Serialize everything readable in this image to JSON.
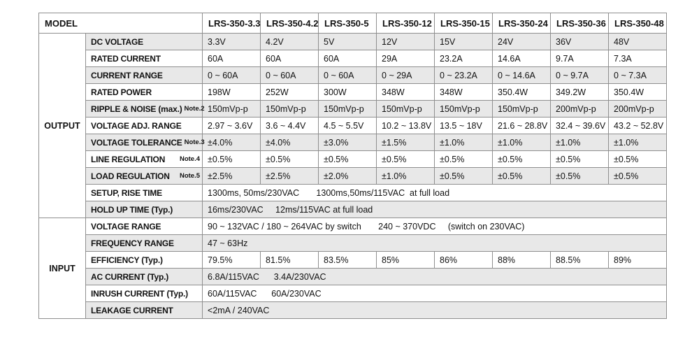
{
  "table": {
    "colors": {
      "stripe": "#e8e8e8",
      "border": "#8f8f8f"
    },
    "header": {
      "model_label": "MODEL",
      "models": [
        "LRS-350-3.3",
        "LRS-350-4.2",
        "LRS-350-5",
        "LRS-350-12",
        "LRS-350-15",
        "LRS-350-24",
        "LRS-350-36",
        "LRS-350-48"
      ]
    },
    "sections": [
      {
        "name": "OUTPUT",
        "rows": [
          {
            "label": "DC VOLTAGE",
            "values": [
              "3.3V",
              "4.2V",
              "5V",
              "12V",
              "15V",
              "24V",
              "36V",
              "48V"
            ]
          },
          {
            "label": "RATED CURRENT",
            "values": [
              "60A",
              "60A",
              "60A",
              "29A",
              "23.2A",
              "14.6A",
              "9.7A",
              "7.3A"
            ]
          },
          {
            "label": "CURRENT RANGE",
            "values": [
              "0 ~ 60A",
              "0 ~ 60A",
              "0 ~ 60A",
              "0 ~ 29A",
              "0 ~ 23.2A",
              "0 ~ 14.6A",
              "0 ~ 9.7A",
              "0 ~ 7.3A"
            ]
          },
          {
            "label": "RATED POWER",
            "values": [
              "198W",
              "252W",
              "300W",
              "348W",
              "348W",
              "350.4W",
              "349.2W",
              "350.4W"
            ]
          },
          {
            "label": "RIPPLE & NOISE (max.)",
            "note": "Note.2",
            "values": [
              "150mVp-p",
              "150mVp-p",
              "150mVp-p",
              "150mVp-p",
              "150mVp-p",
              "150mVp-p",
              "200mVp-p",
              "200mVp-p"
            ]
          },
          {
            "label": "VOLTAGE ADJ. RANGE",
            "values": [
              "2.97 ~ 3.6V",
              "3.6 ~ 4.4V",
              "4.5 ~ 5.5V",
              "10.2 ~ 13.8V",
              "13.5 ~ 18V",
              "21.6 ~ 28.8V",
              "32.4 ~ 39.6V",
              "43.2 ~ 52.8V"
            ]
          },
          {
            "label": "VOLTAGE TOLERANCE",
            "note": "Note.3",
            "values": [
              "±4.0%",
              "±4.0%",
              "±3.0%",
              "±1.5%",
              "±1.0%",
              "±1.0%",
              "±1.0%",
              "±1.0%"
            ]
          },
          {
            "label": "LINE REGULATION",
            "note": "Note.4",
            "values": [
              "±0.5%",
              "±0.5%",
              "±0.5%",
              "±0.5%",
              "±0.5%",
              "±0.5%",
              "±0.5%",
              "±0.5%"
            ]
          },
          {
            "label": "LOAD REGULATION",
            "note": "Note.5",
            "values": [
              "±2.5%",
              "±2.5%",
              "±2.0%",
              "±1.0%",
              "±0.5%",
              "±0.5%",
              "±0.5%",
              "±0.5%"
            ]
          },
          {
            "label": "SETUP, RISE TIME",
            "span": "1300ms, 50ms/230VAC       1300ms,50ms/115VAC  at full load"
          },
          {
            "label": "HOLD UP TIME (Typ.)",
            "span": "16ms/230VAC     12ms/115VAC at full load"
          }
        ]
      },
      {
        "name": "INPUT",
        "rows": [
          {
            "label": "VOLTAGE RANGE",
            "span": "90 ~ 132VAC / 180 ~ 264VAC by switch       240 ~ 370VDC     (switch on 230VAC)"
          },
          {
            "label": "FREQUENCY RANGE",
            "span": "47 ~ 63Hz"
          },
          {
            "label": "EFFICIENCY (Typ.)",
            "values": [
              "79.5%",
              "81.5%",
              "83.5%",
              "85%",
              "86%",
              "88%",
              "88.5%",
              "89%"
            ]
          },
          {
            "label": "AC CURRENT (Typ.)",
            "span": "6.8A/115VAC      3.4A/230VAC"
          },
          {
            "label": "INRUSH CURRENT (Typ.)",
            "span": "60A/115VAC      60A/230VAC"
          },
          {
            "label": "LEAKAGE CURRENT",
            "span": "<2mA / 240VAC"
          }
        ]
      }
    ]
  }
}
